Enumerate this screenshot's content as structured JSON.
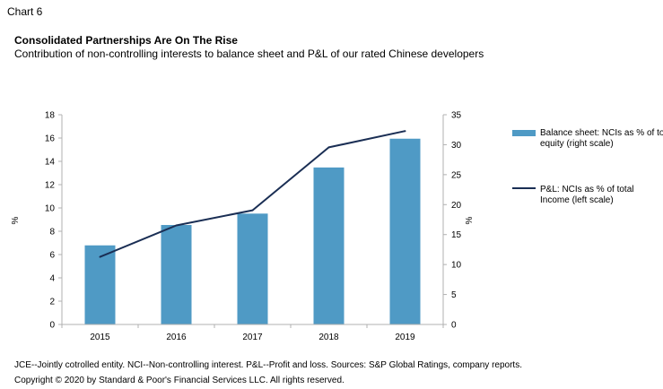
{
  "header": {
    "chart_label": "Chart 6",
    "title": "Consolidated Partnerships Are On The Rise",
    "subtitle": "Contribution of non-controlling interests to balance sheet and P&L of our rated Chinese developers"
  },
  "footer": {
    "note": "JCE--Jointly cotrolled entity. NCI--Non-controlling interest. P&L--Profit and loss. Sources: S&P Global Ratings, company reports.",
    "copyright": "Copyright © 2020 by Standard & Poor's Financial Services LLC. All rights reserved."
  },
  "colors": {
    "bar": "#4f9ac5",
    "line": "#1a2e54",
    "axis": "#b0b0b0"
  },
  "chart_data": {
    "type": "bar",
    "categories": [
      "2015",
      "2016",
      "2017",
      "2018",
      "2019"
    ],
    "series": [
      {
        "name": "Balance sheet: NCIs as % of total equity (right scale)",
        "kind": "bar",
        "axis": "right",
        "values": [
          13.2,
          16.6,
          18.5,
          26.2,
          31.0
        ]
      },
      {
        "name": "P&L: NCIs as % of total Income (left scale)",
        "kind": "line",
        "axis": "left",
        "values": [
          5.8,
          8.5,
          9.8,
          15.2,
          16.6
        ]
      }
    ],
    "y_left": {
      "label": "%",
      "range": [
        0,
        18
      ],
      "ticks": [
        "0",
        "2",
        "4",
        "6",
        "8",
        "10",
        "12",
        "14",
        "16",
        "18"
      ]
    },
    "y_right": {
      "label": "%",
      "range": [
        0,
        35
      ],
      "ticks": [
        "0",
        "5",
        "10",
        "15",
        "20",
        "25",
        "30",
        "35"
      ]
    },
    "grid": false,
    "legend": "right"
  }
}
